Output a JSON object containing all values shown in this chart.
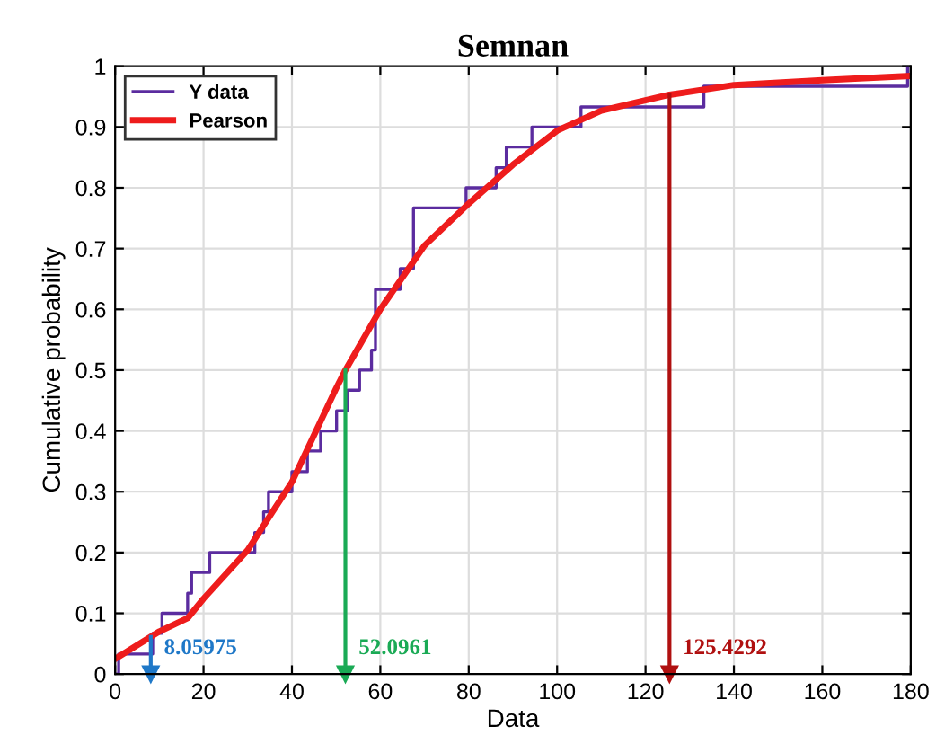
{
  "chart_data": {
    "type": "line",
    "title": "Semnan",
    "xlabel": "Data",
    "ylabel": "Cumulative probability",
    "xlim": [
      0,
      180
    ],
    "xticks": [
      0,
      20,
      40,
      60,
      80,
      100,
      120,
      140,
      160,
      180
    ],
    "ylim": [
      0,
      1
    ],
    "yticks": [
      0,
      0.1,
      0.2,
      0.3,
      0.4,
      0.5,
      0.6,
      0.7,
      0.8,
      0.9,
      1
    ],
    "grid": true,
    "legend": "top left",
    "series": [
      {
        "name": "Y data",
        "type": "step",
        "color": "#5b2c9f",
        "x": [
          0,
          0.8,
          8.5,
          10.6,
          16.4,
          17.3,
          21.4,
          31.6,
          33.6,
          34.7,
          40,
          43.5,
          46.5,
          50.1,
          52.6,
          55.3,
          58,
          58.9,
          64.5,
          67.5,
          79.4,
          86.2,
          88.5,
          94.3,
          105.4,
          133.2,
          179.3
        ],
        "values": [
          0,
          0.033,
          0.067,
          0.1,
          0.133,
          0.167,
          0.2,
          0.233,
          0.267,
          0.3,
          0.333,
          0.367,
          0.4,
          0.433,
          0.467,
          0.5,
          0.533,
          0.633,
          0.667,
          0.767,
          0.8,
          0.833,
          0.867,
          0.9,
          0.933,
          0.967,
          1.0
        ]
      },
      {
        "name": "Pearson",
        "color": "#ee1c1c",
        "x": [
          0,
          10,
          16.4,
          20,
          30,
          40,
          50,
          52.1,
          60,
          70,
          80,
          90,
          100,
          110,
          125.4,
          140,
          160,
          180
        ],
        "values": [
          0.025,
          0.07,
          0.092,
          0.124,
          0.204,
          0.316,
          0.47,
          0.5,
          0.6,
          0.705,
          0.774,
          0.838,
          0.894,
          0.927,
          0.953,
          0.969,
          0.977,
          0.984
        ]
      }
    ],
    "ref_lines": [
      {
        "axis": "x",
        "value": 8.05975,
        "label": "8.05975",
        "color": "#1f78c8"
      },
      {
        "axis": "x",
        "value": 52.0961,
        "label": "52.0961",
        "color": "#1aaa55"
      },
      {
        "axis": "x",
        "value": 125.4292,
        "label": "125.4292",
        "color": "#b01010"
      }
    ]
  }
}
